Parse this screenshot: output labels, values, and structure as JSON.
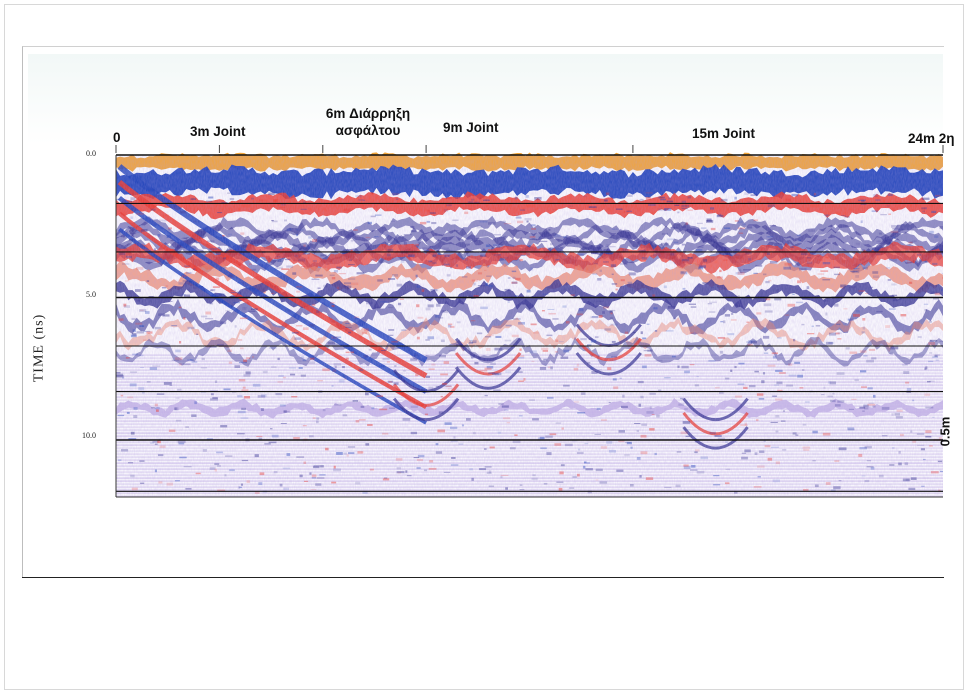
{
  "chart_data": {
    "type": "heatmap",
    "subtype": "gpr-radargram",
    "ylabel": "TIME (ns)",
    "yticks": [
      "0.0",
      "5.0",
      "10.0"
    ],
    "ylim": [
      0,
      12
    ],
    "x_unit": "m",
    "xlim": [
      0,
      24
    ],
    "distance_markers": [
      {
        "x": 0,
        "label": "0"
      },
      {
        "x": 3,
        "label": "3m Joint"
      },
      {
        "x": 6,
        "label": "6m Διάρρηξη ασφάλτου"
      },
      {
        "x": 9,
        "label": "9m Joint"
      },
      {
        "x": 15,
        "label": "15m Joint"
      },
      {
        "x": 24,
        "label": "24m 2η"
      }
    ],
    "depth_scale_label": "0.5m",
    "horizontal_gridlines_ns": [
      0.0,
      1.7,
      3.4,
      5.0,
      6.7,
      8.3,
      10.0,
      11.8
    ],
    "palette": {
      "surface": "#f0a030",
      "cold": "#1a3fb8",
      "deep_cold": "#2a2a8a",
      "hot": "#ee3322",
      "warm": "#f08060",
      "background": "#ffffff",
      "faint": "#c8b8e8"
    }
  }
}
